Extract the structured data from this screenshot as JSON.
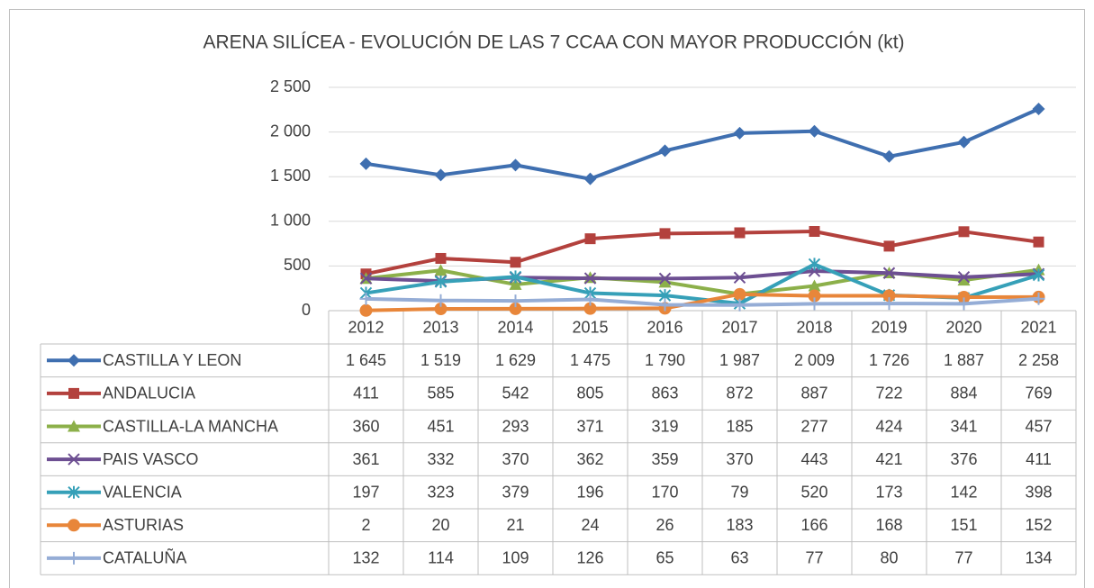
{
  "chart_data": {
    "type": "line",
    "title": "ARENA SILÍCEA - EVOLUCIÓN  DE LAS 7 CCAA CON MAYOR PRODUCCIÓN  (kt)",
    "categories": [
      "2012",
      "2013",
      "2014",
      "2015",
      "2016",
      "2017",
      "2018",
      "2019",
      "2020",
      "2021"
    ],
    "ylim": [
      0,
      2500
    ],
    "yticks": [
      0,
      500,
      {
        "value": 1000,
        "label": "1 000"
      },
      {
        "value": 1500,
        "label": "1 500"
      },
      {
        "value": 2000,
        "label": "2 000"
      },
      {
        "value": 2500,
        "label": "2 500"
      }
    ],
    "grid": true,
    "series": [
      {
        "name": "CASTILLA Y LEON",
        "color": "#3f6fb0",
        "marker": "diamond",
        "values": [
          1645,
          1519,
          1629,
          1475,
          1790,
          1987,
          2009,
          1726,
          1887,
          2258
        ],
        "value_labels": [
          "1 645",
          "1 519",
          "1 629",
          "1 475",
          "1 790",
          "1 987",
          "2 009",
          "1 726",
          "1 887",
          "2 258"
        ]
      },
      {
        "name": "ANDALUCIA",
        "color": "#b3413d",
        "marker": "square",
        "values": [
          411,
          585,
          542,
          805,
          863,
          872,
          887,
          722,
          884,
          769
        ]
      },
      {
        "name": "CASTILLA-LA MANCHA",
        "color": "#8cb04a",
        "marker": "triangle",
        "values": [
          360,
          451,
          293,
          371,
          319,
          185,
          277,
          424,
          341,
          457
        ]
      },
      {
        "name": "PAIS VASCO",
        "color": "#6d4f92",
        "marker": "x",
        "values": [
          361,
          332,
          370,
          362,
          359,
          370,
          443,
          421,
          376,
          411
        ]
      },
      {
        "name": "VALENCIA",
        "color": "#36a0b8",
        "marker": "star",
        "values": [
          197,
          323,
          379,
          196,
          170,
          79,
          520,
          173,
          142,
          398
        ]
      },
      {
        "name": "ASTURIAS",
        "color": "#e8863a",
        "marker": "circle",
        "values": [
          2,
          20,
          21,
          24,
          26,
          183,
          166,
          168,
          151,
          152
        ]
      },
      {
        "name": "CATALUÑA",
        "color": "#95add6",
        "marker": "plus",
        "values": [
          132,
          114,
          109,
          126,
          65,
          63,
          77,
          80,
          77,
          134
        ]
      }
    ]
  }
}
